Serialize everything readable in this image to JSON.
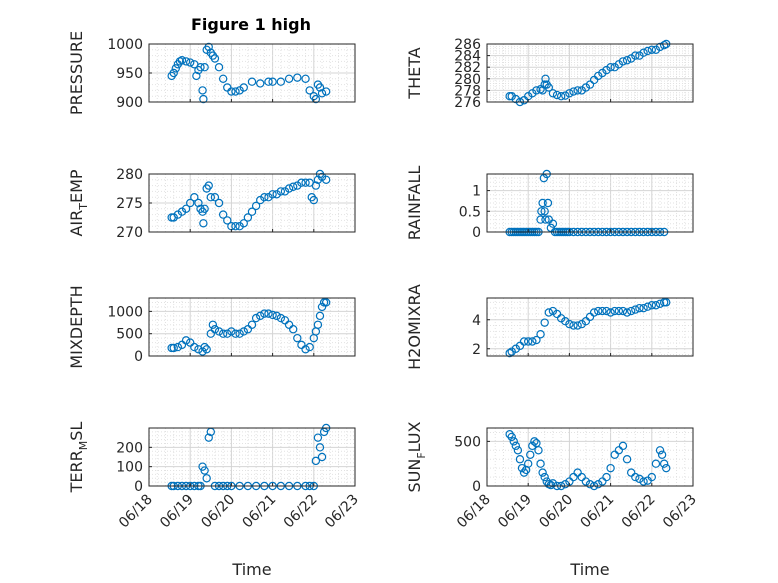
{
  "figure": {
    "title": "Figure 1 high"
  },
  "chart_data": [
    {
      "type": "scatter",
      "ylabel": "PRESSURE",
      "ylim": [
        900,
        1000
      ],
      "yticks": [
        900,
        950,
        1000
      ],
      "xlim": [
        0,
        5
      ],
      "xticks": [
        0,
        1,
        2,
        3,
        4,
        5
      ],
      "xticklabels": [
        "06/18",
        "06/19",
        "06/20",
        "06/21",
        "06/22",
        "06/23"
      ],
      "show_xticklabels": false,
      "xlabel": "",
      "grid": true,
      "marker_color": "#0072BD",
      "x": [
        0.55,
        0.6,
        0.65,
        0.7,
        0.75,
        0.8,
        0.9,
        1.0,
        1.1,
        1.15,
        1.2,
        1.25,
        1.3,
        1.32,
        1.35,
        1.4,
        1.45,
        1.5,
        1.55,
        1.6,
        1.7,
        1.8,
        1.9,
        2.0,
        2.1,
        2.2,
        2.3,
        2.5,
        2.7,
        2.9,
        3.0,
        3.2,
        3.4,
        3.6,
        3.8,
        3.9,
        4.0,
        4.05,
        4.1,
        4.15,
        4.2,
        4.3
      ],
      "y": [
        945,
        950,
        958,
        965,
        970,
        972,
        970,
        968,
        965,
        945,
        955,
        960,
        920,
        905,
        960,
        990,
        995,
        985,
        980,
        975,
        960,
        940,
        925,
        918,
        918,
        920,
        925,
        935,
        932,
        935,
        935,
        935,
        940,
        942,
        940,
        920,
        910,
        905,
        930,
        925,
        915,
        918
      ]
    },
    {
      "type": "scatter",
      "ylabel": "THETA",
      "ylim": [
        276,
        286
      ],
      "yticks": [
        276,
        278,
        280,
        282,
        284,
        286
      ],
      "xlim": [
        0,
        5
      ],
      "xticks": [
        0,
        1,
        2,
        3,
        4,
        5
      ],
      "xticklabels": [
        "06/18",
        "06/19",
        "06/20",
        "06/21",
        "06/22",
        "06/23"
      ],
      "show_xticklabels": false,
      "xlabel": "",
      "grid": true,
      "marker_color": "#0072BD",
      "x": [
        0.55,
        0.6,
        0.7,
        0.8,
        0.9,
        1.0,
        1.1,
        1.2,
        1.3,
        1.35,
        1.4,
        1.42,
        1.45,
        1.5,
        1.6,
        1.7,
        1.8,
        1.9,
        2.0,
        2.1,
        2.2,
        2.3,
        2.4,
        2.5,
        2.6,
        2.7,
        2.8,
        2.9,
        3.0,
        3.1,
        3.2,
        3.3,
        3.4,
        3.5,
        3.6,
        3.7,
        3.8,
        3.9,
        4.0,
        4.1,
        4.2,
        4.3,
        4.35
      ],
      "y": [
        277,
        277,
        276.5,
        276,
        276.3,
        277,
        277.5,
        278,
        278.2,
        278,
        279,
        280,
        279,
        278.5,
        277.5,
        277.2,
        277,
        277.1,
        277.5,
        277.8,
        278,
        278,
        278.5,
        279,
        279.8,
        280.5,
        281,
        281.5,
        282,
        282,
        282.5,
        283,
        283.2,
        283.5,
        284,
        284,
        284.5,
        284.8,
        285,
        285,
        285.5,
        285.8,
        286
      ]
    },
    {
      "type": "scatter",
      "ylabel": "AIR_TEMP",
      "ylim": [
        270,
        280
      ],
      "yticks": [
        270,
        275,
        280
      ],
      "xlim": [
        0,
        5
      ],
      "xticks": [
        0,
        1,
        2,
        3,
        4,
        5
      ],
      "xticklabels": [
        "06/18",
        "06/19",
        "06/20",
        "06/21",
        "06/22",
        "06/23"
      ],
      "show_xticklabels": false,
      "xlabel": "",
      "grid": true,
      "marker_color": "#0072BD",
      "x": [
        0.55,
        0.6,
        0.7,
        0.8,
        0.9,
        1.0,
        1.1,
        1.2,
        1.25,
        1.3,
        1.32,
        1.35,
        1.4,
        1.45,
        1.5,
        1.6,
        1.7,
        1.8,
        1.9,
        2.0,
        2.1,
        2.2,
        2.3,
        2.4,
        2.5,
        2.6,
        2.7,
        2.8,
        2.9,
        3.0,
        3.1,
        3.2,
        3.3,
        3.4,
        3.5,
        3.6,
        3.7,
        3.8,
        3.9,
        3.95,
        4.0,
        4.05,
        4.1,
        4.15,
        4.2,
        4.3
      ],
      "y": [
        272.5,
        272.5,
        273,
        273.5,
        274,
        275,
        276,
        275,
        274,
        273.5,
        271.5,
        274,
        277.5,
        278,
        276,
        276,
        275,
        273,
        272,
        271,
        271,
        271,
        271.5,
        272.5,
        273.5,
        274.5,
        275.5,
        276,
        276,
        276.5,
        276.5,
        277,
        277,
        277.5,
        277.8,
        278,
        278.5,
        278.5,
        278.5,
        276,
        275.5,
        278,
        279,
        280,
        279.5,
        279
      ]
    },
    {
      "type": "scatter",
      "ylabel": "RAINFALL",
      "ylim": [
        0,
        1.4
      ],
      "yticks": [
        0,
        0.5,
        1
      ],
      "xlim": [
        0,
        5
      ],
      "xticks": [
        0,
        1,
        2,
        3,
        4,
        5
      ],
      "xticklabels": [
        "06/18",
        "06/19",
        "06/20",
        "06/21",
        "06/22",
        "06/23"
      ],
      "show_xticklabels": false,
      "xlabel": "",
      "grid": true,
      "marker_color": "#0072BD",
      "x": [
        0.55,
        0.6,
        0.65,
        0.7,
        0.75,
        0.8,
        0.85,
        0.9,
        0.95,
        1.0,
        1.05,
        1.1,
        1.15,
        1.2,
        1.25,
        1.3,
        1.32,
        1.35,
        1.38,
        1.4,
        1.42,
        1.45,
        1.48,
        1.5,
        1.55,
        1.6,
        1.65,
        1.7,
        1.75,
        1.8,
        1.85,
        1.9,
        1.95,
        2.0,
        2.1,
        2.2,
        2.3,
        2.4,
        2.5,
        2.6,
        2.7,
        2.8,
        2.9,
        3.0,
        3.1,
        3.2,
        3.3,
        3.4,
        3.5,
        3.6,
        3.7,
        3.8,
        3.9,
        4.0,
        4.1,
        4.2,
        4.3
      ],
      "y": [
        0,
        0,
        0,
        0,
        0,
        0,
        0,
        0,
        0,
        0,
        0,
        0,
        0,
        0,
        0,
        0.3,
        0.5,
        0.7,
        1.3,
        0.5,
        0.3,
        1.4,
        0.7,
        0.3,
        0.1,
        0.2,
        0,
        0,
        0,
        0,
        0,
        0,
        0,
        0,
        0,
        0,
        0,
        0,
        0,
        0,
        0,
        0,
        0,
        0,
        0,
        0,
        0,
        0,
        0,
        0,
        0,
        0,
        0,
        0,
        0,
        0,
        0
      ]
    },
    {
      "type": "scatter",
      "ylabel": "MIXDEPTH",
      "ylim": [
        0,
        1300
      ],
      "yticks": [
        0,
        500,
        1000
      ],
      "xlim": [
        0,
        5
      ],
      "xticks": [
        0,
        1,
        2,
        3,
        4,
        5
      ],
      "xticklabels": [
        "06/18",
        "06/19",
        "06/20",
        "06/21",
        "06/22",
        "06/23"
      ],
      "show_xticklabels": false,
      "xlabel": "",
      "grid": true,
      "marker_color": "#0072BD",
      "x": [
        0.55,
        0.6,
        0.7,
        0.8,
        0.9,
        1.0,
        1.1,
        1.2,
        1.3,
        1.35,
        1.4,
        1.5,
        1.55,
        1.6,
        1.7,
        1.8,
        1.9,
        2.0,
        2.1,
        2.2,
        2.3,
        2.4,
        2.5,
        2.6,
        2.7,
        2.8,
        2.9,
        3.0,
        3.1,
        3.2,
        3.3,
        3.4,
        3.5,
        3.6,
        3.7,
        3.8,
        3.9,
        4.0,
        4.05,
        4.1,
        4.15,
        4.2,
        4.25,
        4.3
      ],
      "y": [
        180,
        180,
        200,
        250,
        350,
        300,
        200,
        150,
        100,
        200,
        150,
        500,
        700,
        600,
        550,
        500,
        500,
        550,
        500,
        500,
        550,
        600,
        700,
        850,
        900,
        950,
        950,
        920,
        900,
        850,
        800,
        700,
        600,
        400,
        250,
        150,
        200,
        400,
        550,
        700,
        900,
        1100,
        1200,
        1200
      ]
    },
    {
      "type": "scatter",
      "ylabel": "H2OMIXRA",
      "ylim": [
        1.5,
        5.5
      ],
      "yticks": [
        2,
        4
      ],
      "xlim": [
        0,
        5
      ],
      "xticks": [
        0,
        1,
        2,
        3,
        4,
        5
      ],
      "xticklabels": [
        "06/18",
        "06/19",
        "06/20",
        "06/21",
        "06/22",
        "06/23"
      ],
      "show_xticklabels": false,
      "xlabel": "",
      "grid": true,
      "marker_color": "#0072BD",
      "x": [
        0.55,
        0.6,
        0.7,
        0.8,
        0.9,
        1.0,
        1.1,
        1.2,
        1.3,
        1.4,
        1.5,
        1.6,
        1.7,
        1.8,
        1.9,
        2.0,
        2.1,
        2.2,
        2.3,
        2.4,
        2.5,
        2.6,
        2.7,
        2.8,
        2.9,
        3.0,
        3.1,
        3.2,
        3.3,
        3.4,
        3.5,
        3.6,
        3.7,
        3.8,
        3.9,
        4.0,
        4.1,
        4.2,
        4.3,
        4.35
      ],
      "y": [
        1.7,
        1.8,
        2.0,
        2.2,
        2.5,
        2.5,
        2.5,
        2.6,
        3.0,
        3.8,
        4.5,
        4.6,
        4.4,
        4.1,
        3.9,
        3.7,
        3.6,
        3.6,
        3.7,
        3.9,
        4.2,
        4.5,
        4.6,
        4.6,
        4.6,
        4.5,
        4.6,
        4.6,
        4.6,
        4.5,
        4.6,
        4.7,
        4.8,
        4.8,
        4.9,
        5.0,
        5.0,
        5.1,
        5.2,
        5.2
      ]
    },
    {
      "type": "scatter",
      "ylabel": "TERR_MSL",
      "ylim": [
        0,
        300
      ],
      "yticks": [
        0,
        100,
        200
      ],
      "xlim": [
        0,
        5
      ],
      "xticks": [
        0,
        1,
        2,
        3,
        4,
        5
      ],
      "xticklabels": [
        "06/18",
        "06/19",
        "06/20",
        "06/21",
        "06/22",
        "06/23"
      ],
      "show_xticklabels": true,
      "xlabel": "Time",
      "grid": true,
      "marker_color": "#0072BD",
      "x": [
        0.55,
        0.6,
        0.7,
        0.8,
        0.9,
        1.0,
        1.1,
        1.2,
        1.25,
        1.3,
        1.35,
        1.4,
        1.45,
        1.5,
        1.6,
        1.7,
        1.8,
        1.9,
        2.0,
        2.2,
        2.4,
        2.6,
        2.8,
        3.0,
        3.2,
        3.4,
        3.6,
        3.8,
        3.9,
        4.0,
        4.05,
        4.1,
        4.15,
        4.2,
        4.25,
        4.3
      ],
      "y": [
        0,
        0,
        0,
        0,
        0,
        0,
        0,
        0,
        0,
        100,
        80,
        40,
        250,
        280,
        0,
        0,
        0,
        0,
        0,
        0,
        0,
        0,
        0,
        0,
        0,
        0,
        0,
        0,
        0,
        0,
        130,
        250,
        200,
        150,
        280,
        300
      ]
    },
    {
      "type": "scatter",
      "ylabel": "SUN_FLUX",
      "ylim": [
        0,
        650
      ],
      "yticks": [
        0,
        500
      ],
      "xlim": [
        0,
        5
      ],
      "xticks": [
        0,
        1,
        2,
        3,
        4,
        5
      ],
      "xticklabels": [
        "06/18",
        "06/19",
        "06/20",
        "06/21",
        "06/22",
        "06/23"
      ],
      "show_xticklabels": true,
      "xlabel": "Time",
      "grid": true,
      "marker_color": "#0072BD",
      "x": [
        0.55,
        0.6,
        0.65,
        0.7,
        0.75,
        0.8,
        0.85,
        0.9,
        0.95,
        1.0,
        1.05,
        1.1,
        1.15,
        1.2,
        1.25,
        1.3,
        1.35,
        1.4,
        1.45,
        1.5,
        1.55,
        1.6,
        1.7,
        1.8,
        1.9,
        2.0,
        2.1,
        2.2,
        2.3,
        2.4,
        2.5,
        2.6,
        2.7,
        2.8,
        2.9,
        3.0,
        3.1,
        3.2,
        3.3,
        3.4,
        3.5,
        3.6,
        3.7,
        3.8,
        3.9,
        4.0,
        4.1,
        4.2,
        4.25,
        4.3,
        4.35
      ],
      "y": [
        580,
        550,
        500,
        450,
        400,
        300,
        200,
        150,
        180,
        250,
        350,
        450,
        500,
        480,
        400,
        250,
        150,
        100,
        50,
        20,
        10,
        30,
        0,
        0,
        20,
        50,
        100,
        150,
        100,
        50,
        20,
        0,
        20,
        50,
        100,
        200,
        350,
        400,
        450,
        300,
        150,
        100,
        80,
        50,
        60,
        100,
        250,
        400,
        350,
        250,
        200
      ]
    }
  ]
}
